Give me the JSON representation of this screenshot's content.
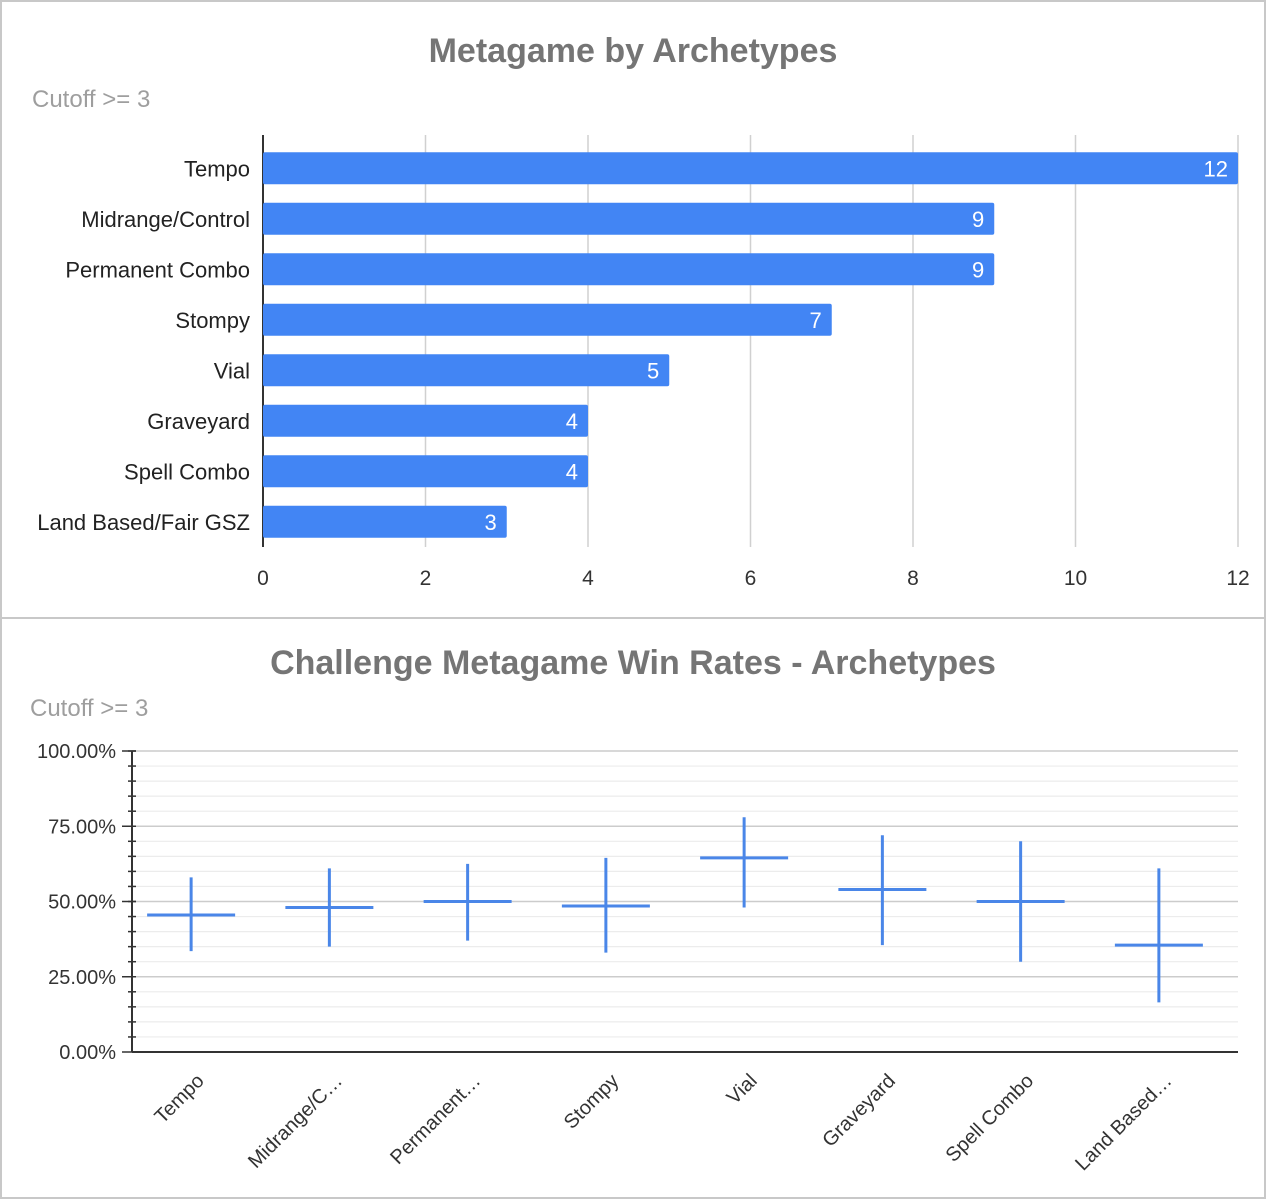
{
  "chart_data": [
    {
      "type": "bar",
      "orientation": "horizontal",
      "title": "Metagame by Archetypes",
      "subtitle": "Cutoff >= 3",
      "categories": [
        "Tempo",
        "Midrange/Control",
        "Permanent Combo",
        "Stompy",
        "Vial",
        "Graveyard",
        "Spell Combo",
        "Land Based/Fair GSZ"
      ],
      "values": [
        12,
        9,
        9,
        7,
        5,
        4,
        4,
        3
      ],
      "xlim": [
        0,
        12
      ],
      "xticks": [
        0,
        2,
        4,
        6,
        8,
        10,
        12
      ],
      "grid": true,
      "bar_color": "#4285f4",
      "data_labels": true
    },
    {
      "type": "candlestick",
      "title": "Challenge Metagame Win Rates - Archetypes",
      "subtitle": "Cutoff >= 3",
      "categories": [
        "Tempo",
        "Midrange/C…",
        "Permanent…",
        "Stompy",
        "Vial",
        "Graveyard",
        "Spell Combo",
        "Land Based…"
      ],
      "values": [
        45.5,
        48,
        50,
        48.5,
        64.5,
        54,
        50,
        35.5
      ],
      "low": [
        33.5,
        35,
        37,
        33,
        48,
        35.5,
        30,
        16.5
      ],
      "high": [
        58,
        61,
        62.5,
        64.5,
        78,
        72,
        70,
        61
      ],
      "ylim": [
        0,
        100
      ],
      "yticks": [
        "0.00%",
        "25.00%",
        "50.00%",
        "75.00%",
        "100.00%"
      ],
      "grid": true,
      "line_color": "#4a86e8"
    }
  ]
}
